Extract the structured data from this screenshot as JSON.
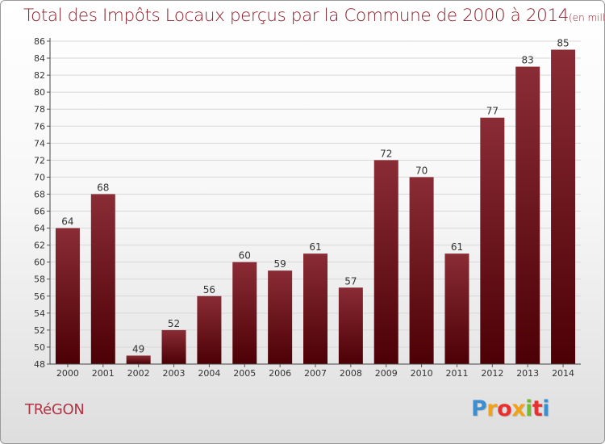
{
  "title": "Total des Impôts Locaux perçus par la Commune de 2000 à 2014",
  "unit": "(en milliers d'€)",
  "commune": "TRéGON",
  "logo": {
    "letters": [
      "P",
      "r",
      "o",
      "x",
      "i",
      "t",
      "i"
    ],
    "colors": [
      "#3a8fd1",
      "#f0a21a",
      "#e8312f",
      "#f0a21a",
      "#6fbd2c",
      "#e8312f",
      "#3a8fd1"
    ]
  },
  "chart_data": {
    "type": "bar",
    "categories": [
      "2000",
      "2001",
      "2002",
      "2003",
      "2004",
      "2005",
      "2006",
      "2007",
      "2008",
      "2009",
      "2010",
      "2011",
      "2012",
      "2013",
      "2014"
    ],
    "values": [
      64,
      68,
      49,
      52,
      56,
      60,
      59,
      61,
      57,
      72,
      70,
      61,
      77,
      83,
      85
    ],
    "ylim": [
      48,
      86
    ],
    "ytick_step": 2,
    "grid": true,
    "bar_color": "#7a1a22"
  }
}
